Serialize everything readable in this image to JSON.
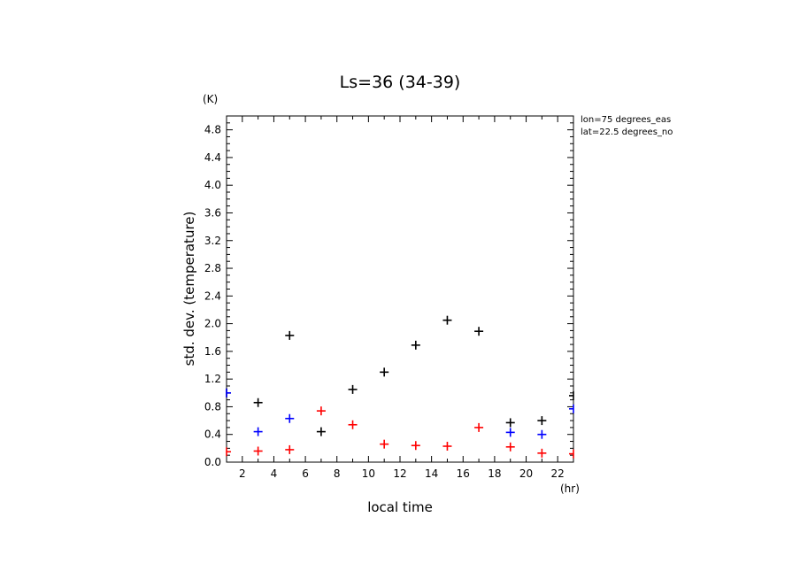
{
  "chart_data": {
    "type": "scatter",
    "title": "Ls=36 (34-39)",
    "xlabel": "local time",
    "ylabel": "std. dev. (temperature)",
    "xunit": "(hr)",
    "yunit": "(K)",
    "xlim": [
      1,
      23
    ],
    "ylim": [
      0,
      5.0
    ],
    "x_ticks": [
      2,
      4,
      6,
      8,
      10,
      12,
      14,
      16,
      18,
      20,
      22
    ],
    "y_ticks": [
      "0.0",
      "0.4",
      "0.8",
      "1.2",
      "1.6",
      "2.0",
      "2.4",
      "2.8",
      "3.2",
      "3.6",
      "4.0",
      "4.4",
      "4.8"
    ],
    "annotations": [
      "lon=75 degrees_eas",
      "lat=22.5 degrees_no"
    ],
    "marker": "+",
    "grid": false,
    "series": [
      {
        "color": "#000000",
        "points": [
          [
            1,
            1.0
          ],
          [
            3,
            0.86
          ],
          [
            5,
            1.83
          ],
          [
            7,
            0.44
          ],
          [
            9,
            1.05
          ],
          [
            11,
            1.3
          ],
          [
            13,
            1.69
          ],
          [
            15,
            2.05
          ],
          [
            17,
            1.89
          ],
          [
            19,
            0.57
          ],
          [
            21,
            0.6
          ],
          [
            23,
            0.96
          ]
        ]
      },
      {
        "color": "#0000ff",
        "points": [
          [
            1,
            1.0
          ],
          [
            3,
            0.44
          ],
          [
            5,
            0.63
          ],
          [
            19,
            0.43
          ],
          [
            21,
            0.4
          ],
          [
            23,
            0.77
          ]
        ]
      },
      {
        "color": "#ff0000",
        "points": [
          [
            1,
            0.15
          ],
          [
            3,
            0.16
          ],
          [
            5,
            0.18
          ],
          [
            7,
            0.74
          ],
          [
            9,
            0.54
          ],
          [
            11,
            0.26
          ],
          [
            13,
            0.24
          ],
          [
            15,
            0.23
          ],
          [
            17,
            0.5
          ],
          [
            19,
            0.22
          ],
          [
            21,
            0.13
          ],
          [
            23,
            0.12
          ]
        ]
      }
    ]
  }
}
